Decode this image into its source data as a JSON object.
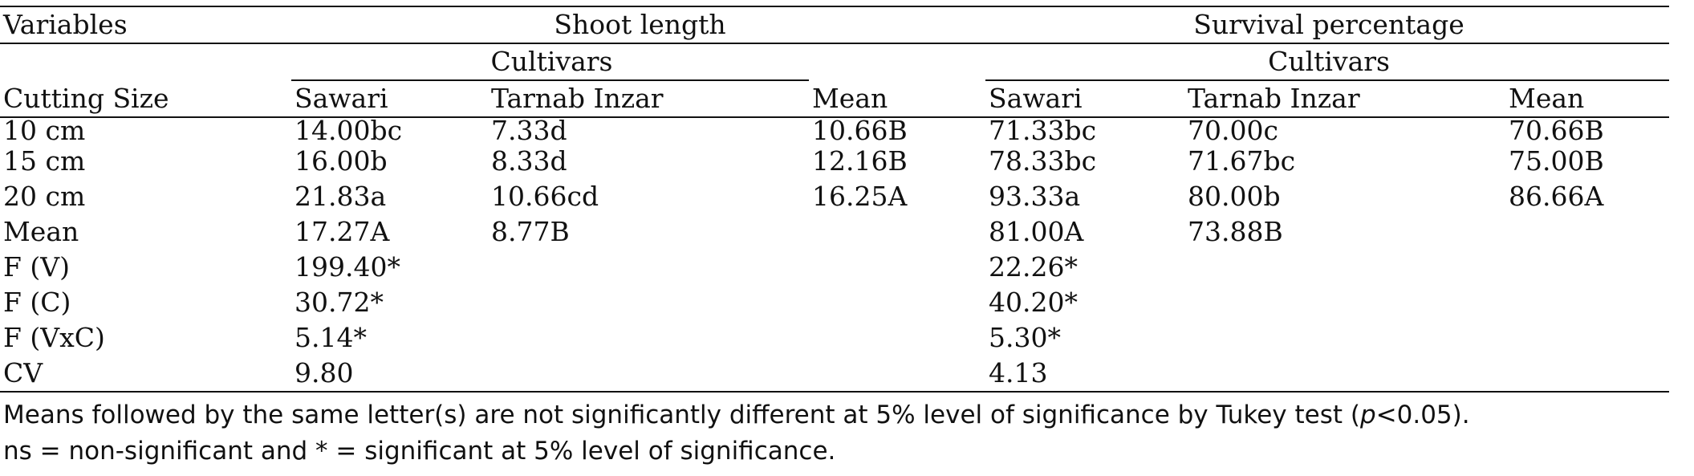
{
  "table": {
    "header": {
      "variables_label": "Variables",
      "shoot_length_label": "Shoot length",
      "survival_label": "Survival percentage",
      "cultivars_label_1": "Cultivars",
      "cultivars_label_2": "Cultivars",
      "cutting_size_label": "Cutting Size",
      "columns": [
        "Sawari",
        "Tarnab Inzar",
        "Mean",
        "Sawari",
        "Tarnab Inzar",
        "Mean"
      ]
    },
    "rows": [
      {
        "label": "10 cm",
        "cells": [
          "14.00bc",
          "7.33d",
          "10.66B",
          "71.33bc",
          "70.00c",
          "70.66B"
        ]
      },
      {
        "label": "15 cm",
        "cells": [
          "16.00b",
          "8.33d",
          "12.16B",
          "78.33bc",
          "71.67bc",
          "75.00B"
        ]
      },
      {
        "label": "20 cm",
        "cells": [
          "21.83a",
          "10.66cd",
          "16.25A",
          "93.33a",
          "80.00b",
          "86.66A"
        ]
      },
      {
        "label": "Mean",
        "cells": [
          "17.27A",
          "8.77B",
          "",
          "81.00A",
          "73.88B",
          ""
        ]
      },
      {
        "label": "F (V)",
        "cells": [
          "199.40*",
          "",
          "",
          "22.26*",
          "",
          ""
        ]
      },
      {
        "label": "F (C)",
        "cells": [
          "30.72*",
          "",
          "",
          "40.20*",
          "",
          ""
        ]
      },
      {
        "label": "F (VxC)",
        "cells": [
          "5.14*",
          "",
          "",
          "5.30*",
          "",
          ""
        ]
      },
      {
        "label": "CV",
        "cells": [
          "9.80",
          "",
          "",
          "4.13",
          "",
          ""
        ]
      }
    ]
  },
  "notes": {
    "line1_before": "Means followed by the same letter(s) are not significantly different at 5% level of significance by Tukey test (",
    "line1_italic": "p",
    "line1_after": "<0.05).",
    "line2": "ns = non-significant and * = significant at 5% level of significance."
  }
}
